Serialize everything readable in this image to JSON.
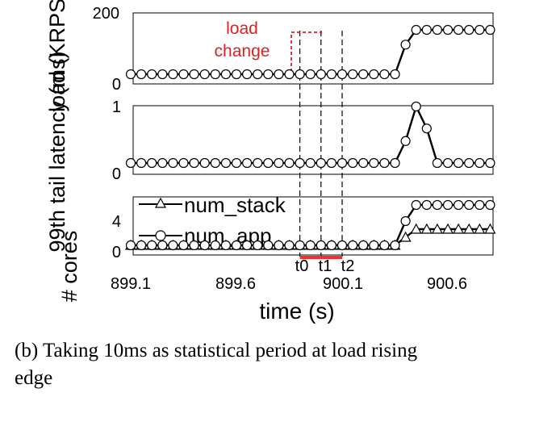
{
  "chart_data": {
    "type": "line",
    "x": [
      899.1,
      899.15,
      899.2,
      899.25,
      899.3,
      899.35,
      899.4,
      899.45,
      899.5,
      899.55,
      899.6,
      899.65,
      899.7,
      899.75,
      899.8,
      899.85,
      899.9,
      899.95,
      900.0,
      900.05,
      900.1,
      900.15,
      900.2,
      900.25,
      900.3,
      900.35,
      900.4,
      900.45,
      900.5,
      900.55,
      900.6,
      900.65,
      900.7,
      900.75,
      900.8
    ],
    "xlabel": "time (s)",
    "x_ticks": [
      "899.1",
      "899.6",
      "900.1",
      "900.6"
    ],
    "xlim": [
      899.1,
      900.8
    ],
    "panels": [
      {
        "ylabel": "load (KRPS)",
        "ylim": [
          0,
          200
        ],
        "y_ticks": [
          "0",
          "200"
        ],
        "series": [
          {
            "marker": "circle",
            "values": [
              30,
              30,
              30,
              30,
              30,
              30,
              30,
              30,
              30,
              30,
              30,
              30,
              30,
              30,
              30,
              30,
              30,
              30,
              30,
              30,
              30,
              30,
              30,
              30,
              30,
              30,
              110,
              150,
              150,
              150,
              150,
              150,
              150,
              150,
              150
            ]
          }
        ],
        "annotation": {
          "text_line1": "load",
          "text_line2": "change",
          "color": "#e02020"
        }
      },
      {
        "ylabel": "99th tail latency (ms)",
        "ylim": [
          0,
          1
        ],
        "y_ticks": [
          "0",
          "1"
        ],
        "series": [
          {
            "marker": "circle",
            "values": [
              0.05,
              0.05,
              0.05,
              0.05,
              0.05,
              0.05,
              0.05,
              0.05,
              0.05,
              0.05,
              0.05,
              0.05,
              0.05,
              0.05,
              0.05,
              0.05,
              0.05,
              0.05,
              0.05,
              0.05,
              0.05,
              0.05,
              0.05,
              0.05,
              0.05,
              0.05,
              0.4,
              0.95,
              0.6,
              0.05,
              0.05,
              0.05,
              0.05,
              0.05,
              0.05
            ]
          }
        ]
      },
      {
        "ylabel": "# cores",
        "ylim": [
          0,
          7
        ],
        "y_ticks": [
          "0",
          "4"
        ],
        "legend_loc": "top-left",
        "series": [
          {
            "name": "num_stack",
            "marker": "triangle",
            "values": [
              1,
              1,
              1,
              1,
              1,
              1,
              1,
              1,
              1,
              1,
              1,
              1,
              1,
              1,
              1,
              1,
              1,
              1,
              1,
              1,
              1,
              1,
              1,
              1,
              1,
              1,
              2,
              3,
              3,
              3,
              3,
              3,
              3,
              3,
              3
            ]
          },
          {
            "name": "num_app",
            "marker": "circle",
            "values": [
              1,
              1,
              1,
              1,
              1,
              1,
              1,
              1,
              1,
              1,
              1,
              1,
              1,
              1,
              1,
              1,
              1,
              1,
              1,
              1,
              1,
              1,
              1,
              1,
              1,
              1,
              4,
              6,
              6,
              6,
              6,
              6,
              6,
              6,
              6
            ]
          }
        ]
      }
    ],
    "markers": [
      {
        "label": "t0",
        "x": 899.9
      },
      {
        "label": "t1",
        "x": 900.0
      },
      {
        "label": "t2",
        "x": 900.1
      }
    ],
    "highlight": {
      "from": 899.9,
      "to": 900.1,
      "color": "#ff2a2a"
    }
  },
  "caption": {
    "line1": "(b)  Taking 10ms as statistical period at load rising",
    "line2": "edge"
  }
}
